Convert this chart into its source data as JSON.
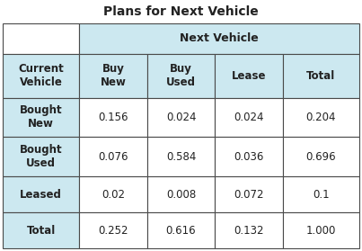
{
  "title": "Plans for Next Vehicle",
  "header_span": "Next Vehicle",
  "col_header_texts": [
    "Buy\nNew",
    "Buy\nUsed",
    "Lease",
    "Total"
  ],
  "row_header_texts": [
    "Current\nVehicle",
    "Bought\nNew",
    "Bought\nUsed",
    "Leased",
    "Total"
  ],
  "table_data": [
    [
      "0.156",
      "0.024",
      "0.024",
      "0.204"
    ],
    [
      "0.076",
      "0.584",
      "0.036",
      "0.696"
    ],
    [
      "0.02",
      "0.008",
      "0.072",
      "0.1"
    ],
    [
      "0.252",
      "0.616",
      "0.132",
      "1.000"
    ]
  ],
  "light_blue": "#cce8f0",
  "white": "#ffffff",
  "border_color": "#4a4a4a",
  "title_fontsize": 10,
  "header_fontsize": 8.5,
  "cell_fontsize": 8.5,
  "fig_bg": "#ffffff",
  "fig_w": 4.03,
  "fig_h": 2.79,
  "dpi": 100
}
